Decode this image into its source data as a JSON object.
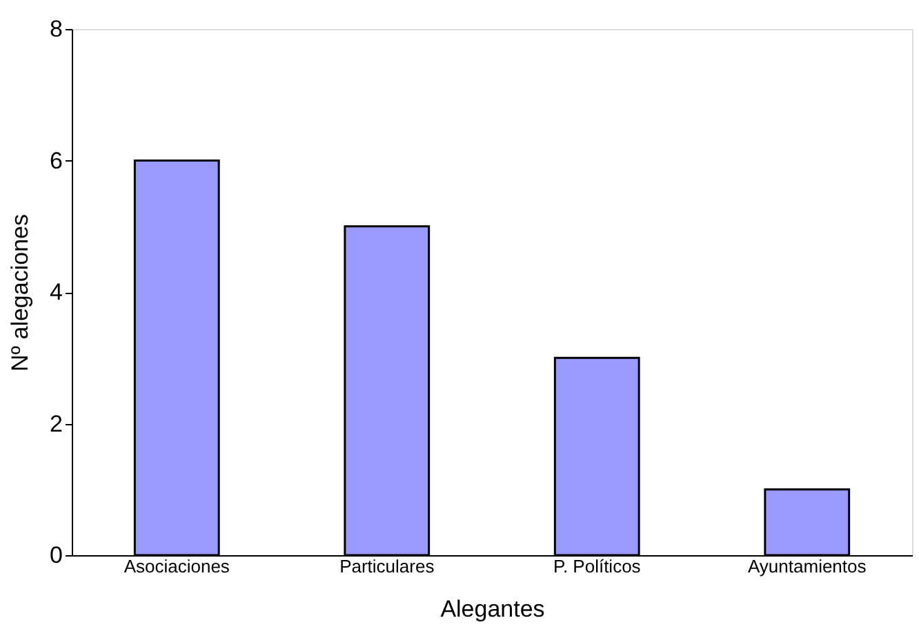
{
  "chart_data": {
    "type": "bar",
    "xlabel": "Alegantes",
    "ylabel": "Nº alegaciones",
    "categories": [
      "Asociaciones",
      "Particulares",
      "P. Políticos",
      "Ayuntamientos"
    ],
    "values": [
      6,
      5,
      3,
      1
    ],
    "color": "#9999ff",
    "ylim": [
      0,
      8
    ],
    "yticks": [
      0,
      2,
      4,
      6,
      8
    ],
    "grid": false
  }
}
